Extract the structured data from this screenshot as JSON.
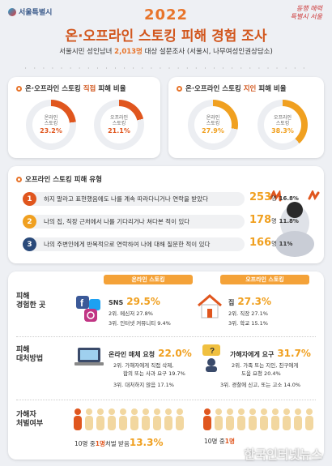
{
  "header": {
    "logo_text": "서울특별시",
    "slogan_line1": "동행 매력",
    "slogan_line2": "특별시 서울",
    "year": "2022",
    "title": "온·오프라인 스토킹 피해 경험 조사",
    "subtitle_prefix": "서울시민 성인남녀 ",
    "subtitle_highlight": "2,013명",
    "subtitle_suffix": " 대상 설문조사 (서울시, 나무여성인권상담소)"
  },
  "direct": {
    "title_prefix": "온·오프라인 스토킹 ",
    "title_highlight": "직접",
    "title_suffix": " 피해 비율",
    "online": {
      "label1": "온라인",
      "label2": "스토킹",
      "value": "23.2%",
      "percent": 23.2,
      "color": "#e0561e"
    },
    "offline": {
      "label1": "오프라인",
      "label2": "스토킹",
      "value": "21.1%",
      "percent": 21.1,
      "color": "#e0561e"
    }
  },
  "acquaintance": {
    "title_prefix": "온·오프라인 스토킹 ",
    "title_highlight": "지인",
    "title_suffix": " 피해 비율",
    "online": {
      "label1": "온라인",
      "label2": "스토킹",
      "value": "27.9%",
      "percent": 27.9,
      "color": "#f0a020"
    },
    "offline": {
      "label1": "오프라인",
      "label2": "스토킹",
      "value": "38.3%",
      "percent": 38.3,
      "color": "#f0a020"
    }
  },
  "types": {
    "title": "오프라인 스토킹 피해 유형",
    "unit": "명",
    "items": [
      {
        "num": "1",
        "color": "#e0561e",
        "text": "하지 말라고 표현했음에도 나를 계속 따라다니거나 연락을 받았다",
        "count": "253",
        "pct": "16.8%"
      },
      {
        "num": "2",
        "color": "#f0a020",
        "text": "나의 집, 직장 근처에서 나를 기다리거나 쳐다본 적이 있다",
        "count": "178",
        "pct": "11.8%"
      },
      {
        "num": "3",
        "color": "#2a4a7a",
        "text": "나의 주변인에게 반복적으로 연락하여 나에 대해 질문한 적이 있다",
        "count": "166",
        "pct": "11%"
      }
    ]
  },
  "compare": {
    "online_head": "온라인 스토킹",
    "offline_head": "오프라인 스토킹",
    "place": {
      "label1": "피해",
      "label2": "경험한 곳",
      "online_top": "SNS",
      "online_top_pct": "29.5%",
      "online_rank2": "2위. 메신저 27.8%",
      "online_rank3": "3위. 인터넷 커뮤니티 9.4%",
      "offline_top": "집",
      "offline_top_pct": "27.3%",
      "offline_rank2": "2위. 직장 27.1%",
      "offline_rank3": "3위. 학교 15.1%"
    },
    "response": {
      "label1": "피해",
      "label2": "대처방법",
      "online_top": "온라인 매체 요청",
      "online_top_pct": "22.0%",
      "online_rank2a": "2위. 가해자에게 직접 삭제,",
      "online_rank2b": "합의 또는 사과 요구 19.7%",
      "online_rank3": "3위. 대처하지 않음 17.1%",
      "offline_top": "가해자에게 요구",
      "offline_top_pct": "31.7%",
      "offline_rank2a": "2위. 가족 또는 지인, 친구에게",
      "offline_rank2b": "도움 요청 20.4%",
      "offline_rank3": "3위. 경찰에 신고, 또는 고소 14.0%"
    },
    "punish": {
      "label1": "가해자",
      "label2": "처벌여부",
      "online_prefix": "10명 중 ",
      "online_highlight": "1명",
      "online_mid": " 처벌 받음 ",
      "online_pct": "13.3%",
      "offline_prefix": "10명 중 ",
      "offline_highlight": "1명"
    }
  },
  "watermark": "한국인터넷뉴스",
  "icons": [
    "calendar-icon",
    "facebook-icon",
    "twitter-icon",
    "instagram-icon",
    "house-icon",
    "laptop-icon",
    "speech-bubble-icon",
    "person-icon",
    "hourglass-icon"
  ]
}
